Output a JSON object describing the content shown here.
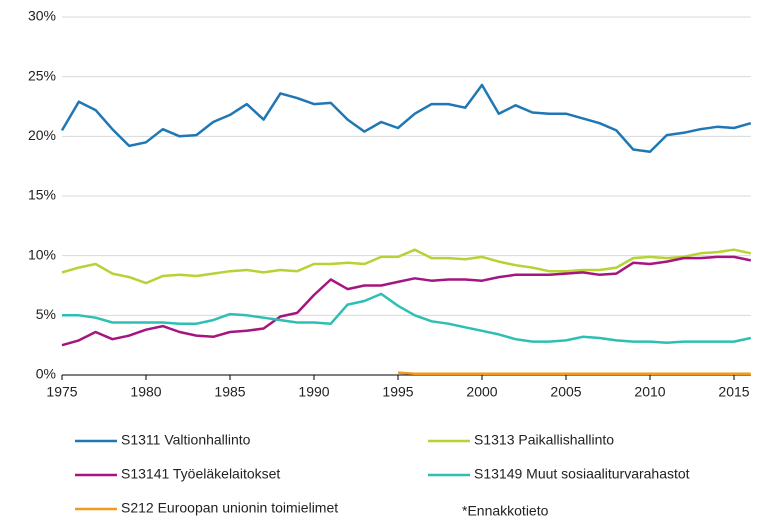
{
  "chart_data": {
    "type": "line",
    "x": [
      1975,
      1976,
      1977,
      1978,
      1979,
      1980,
      1981,
      1982,
      1983,
      1984,
      1985,
      1986,
      1987,
      1988,
      1989,
      1990,
      1991,
      1992,
      1993,
      1994,
      1995,
      1996,
      1997,
      1998,
      1999,
      2000,
      2001,
      2002,
      2003,
      2004,
      2005,
      2006,
      2007,
      2008,
      2009,
      2010,
      2011,
      2012,
      2013,
      2014,
      2015,
      2016
    ],
    "xlim": [
      1975,
      2016
    ],
    "xticks": [
      1975,
      1980,
      1985,
      1990,
      1995,
      2000,
      2005,
      2010,
      2015
    ],
    "ylim": [
      0,
      30
    ],
    "yticks": [
      {
        "value": 0,
        "label": "0%"
      },
      {
        "value": 5,
        "label": "5%"
      },
      {
        "value": 10,
        "label": "10%"
      },
      {
        "value": 15,
        "label": "15%"
      },
      {
        "value": 20,
        "label": "20%"
      },
      {
        "value": 25,
        "label": "25%"
      },
      {
        "value": 30,
        "label": "30%"
      }
    ],
    "grid": true,
    "series": [
      {
        "name": "S1311 Valtionhallinto",
        "color": "#1f77b4",
        "values": [
          20.5,
          22.9,
          22.2,
          20.6,
          19.2,
          19.5,
          20.6,
          20.0,
          20.1,
          21.2,
          21.8,
          22.7,
          21.4,
          23.6,
          23.2,
          22.7,
          22.8,
          21.4,
          20.4,
          21.2,
          20.7,
          21.9,
          22.7,
          22.7,
          22.4,
          24.3,
          21.9,
          22.6,
          22.0,
          21.9,
          21.9,
          21.5,
          21.1,
          20.5,
          18.9,
          18.7,
          20.1,
          20.3,
          20.6,
          20.8,
          20.7,
          21.1
        ]
      },
      {
        "name": "S1313 Paikallishallinto",
        "color": "#b5d334",
        "values": [
          8.6,
          9.0,
          9.3,
          8.5,
          8.2,
          7.7,
          8.3,
          8.4,
          8.3,
          8.5,
          8.7,
          8.8,
          8.6,
          8.8,
          8.7,
          9.3,
          9.3,
          9.4,
          9.3,
          9.9,
          9.9,
          10.5,
          9.8,
          9.8,
          9.7,
          9.9,
          9.5,
          9.2,
          9.0,
          8.7,
          8.7,
          8.8,
          8.8,
          9.0,
          9.8,
          9.9,
          9.8,
          9.9,
          10.2,
          10.3,
          10.5,
          10.2
        ]
      },
      {
        "name": "S13141 Työeläkelaitokset",
        "color": "#a6157f",
        "values": [
          2.5,
          2.9,
          3.6,
          3.0,
          3.3,
          3.8,
          4.1,
          3.6,
          3.3,
          3.2,
          3.6,
          3.7,
          3.9,
          4.9,
          5.2,
          6.7,
          8.0,
          7.2,
          7.5,
          7.5,
          7.8,
          8.1,
          7.9,
          8.0,
          8.0,
          7.9,
          8.2,
          8.4,
          8.4,
          8.4,
          8.5,
          8.6,
          8.4,
          8.5,
          9.4,
          9.3,
          9.5,
          9.8,
          9.8,
          9.9,
          9.9,
          9.6
        ]
      },
      {
        "name": "S13149 Muut sosiaaliturvarahastot",
        "color": "#2ebfb4",
        "values": [
          5.0,
          5.0,
          4.8,
          4.4,
          4.4,
          4.4,
          4.4,
          4.3,
          4.3,
          4.6,
          5.1,
          5.0,
          4.8,
          4.6,
          4.4,
          4.4,
          4.3,
          5.9,
          6.2,
          6.8,
          5.8,
          5.0,
          4.5,
          4.3,
          4.0,
          3.7,
          3.4,
          3.0,
          2.8,
          2.8,
          2.9,
          3.2,
          3.1,
          2.9,
          2.8,
          2.8,
          2.7,
          2.8,
          2.8,
          2.8,
          2.8,
          3.1
        ]
      },
      {
        "name": "S212 Euroopan unionin toimielimet",
        "color": "#f39a1e",
        "values": [
          null,
          null,
          null,
          null,
          null,
          null,
          null,
          null,
          null,
          null,
          null,
          null,
          null,
          null,
          null,
          null,
          null,
          null,
          null,
          null,
          0.2,
          0.1,
          0.1,
          0.1,
          0.1,
          0.1,
          0.1,
          0.1,
          0.1,
          0.1,
          0.1,
          0.1,
          0.1,
          0.1,
          0.1,
          0.1,
          0.1,
          0.1,
          0.1,
          0.1,
          0.1,
          0.1
        ]
      }
    ],
    "note": "*Ennakkotieto"
  }
}
